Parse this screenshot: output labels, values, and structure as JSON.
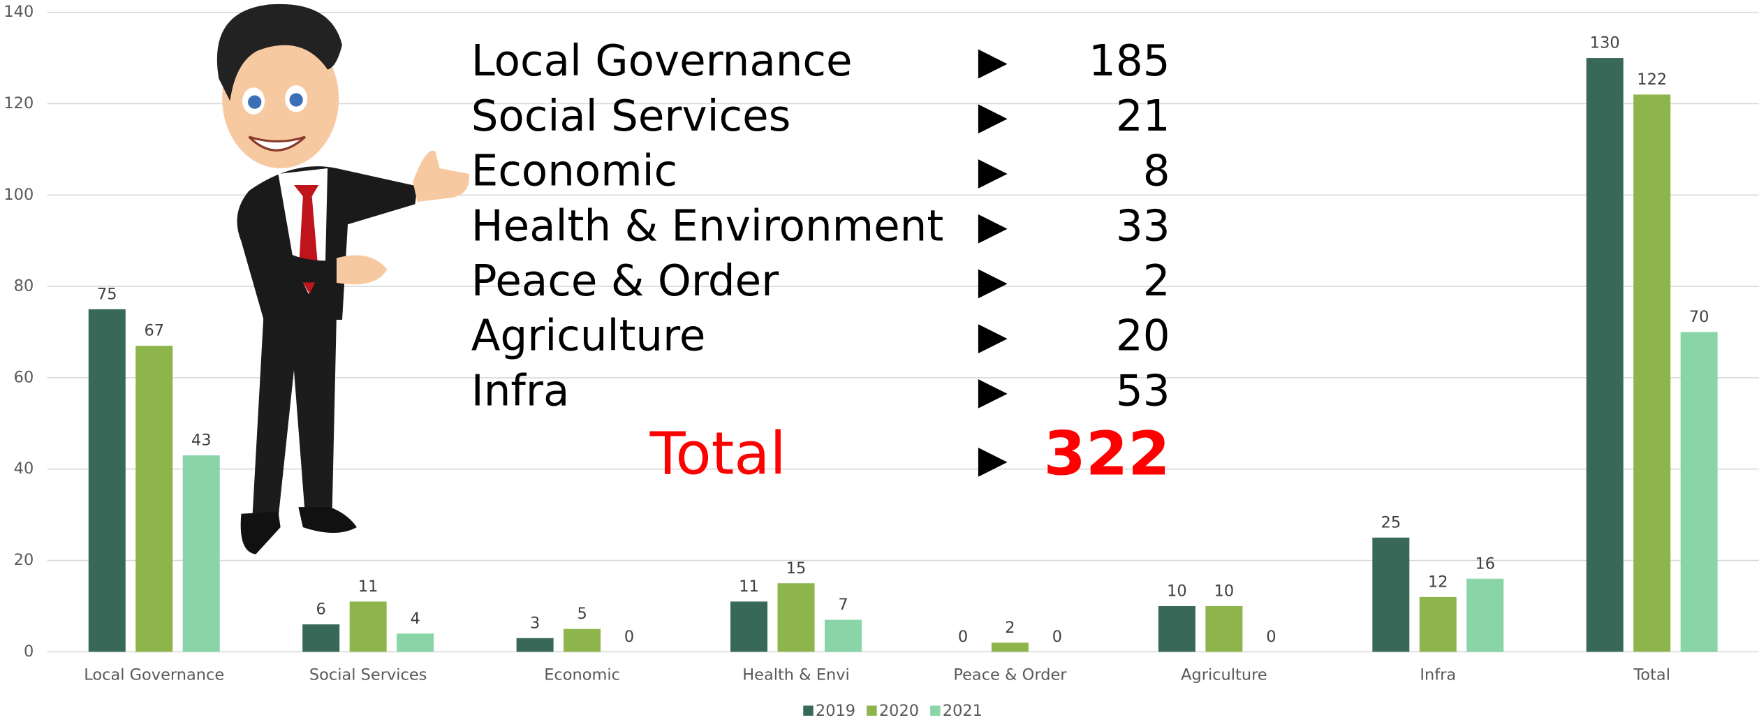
{
  "chart_data": {
    "type": "bar",
    "categories": [
      "Local Governance",
      "Social Services",
      "Economic",
      "Health & Envi",
      "Peace & Order",
      "Agriculture",
      "Infra",
      "Total"
    ],
    "series": [
      {
        "name": "2019",
        "color": "#376858",
        "values": [
          75,
          6,
          3,
          11,
          0,
          10,
          25,
          130
        ]
      },
      {
        "name": "2020",
        "color": "#8db54b",
        "values": [
          67,
          11,
          5,
          15,
          2,
          10,
          12,
          122
        ]
      },
      {
        "name": "2021",
        "color": "#89d5a8",
        "values": [
          43,
          4,
          0,
          7,
          0,
          0,
          16,
          70
        ]
      }
    ],
    "ylim": [
      0,
      140
    ],
    "yticks": [
      0,
      20,
      40,
      60,
      80,
      100,
      120,
      140
    ],
    "grid": true,
    "legend": "bottom",
    "overlay": {
      "items": [
        {
          "label": "Local Governance",
          "value": 185
        },
        {
          "label": "Social Services",
          "value": 21
        },
        {
          "label": "Economic",
          "value": 8
        },
        {
          "label": "Health & Environment",
          "value": 33
        },
        {
          "label": "Peace & Order",
          "value": 2
        },
        {
          "label": "Agriculture",
          "value": 20
        },
        {
          "label": "Infra",
          "value": 53
        }
      ],
      "total_label": "Total",
      "total_value": 322,
      "total_color": "#ff0000"
    }
  }
}
